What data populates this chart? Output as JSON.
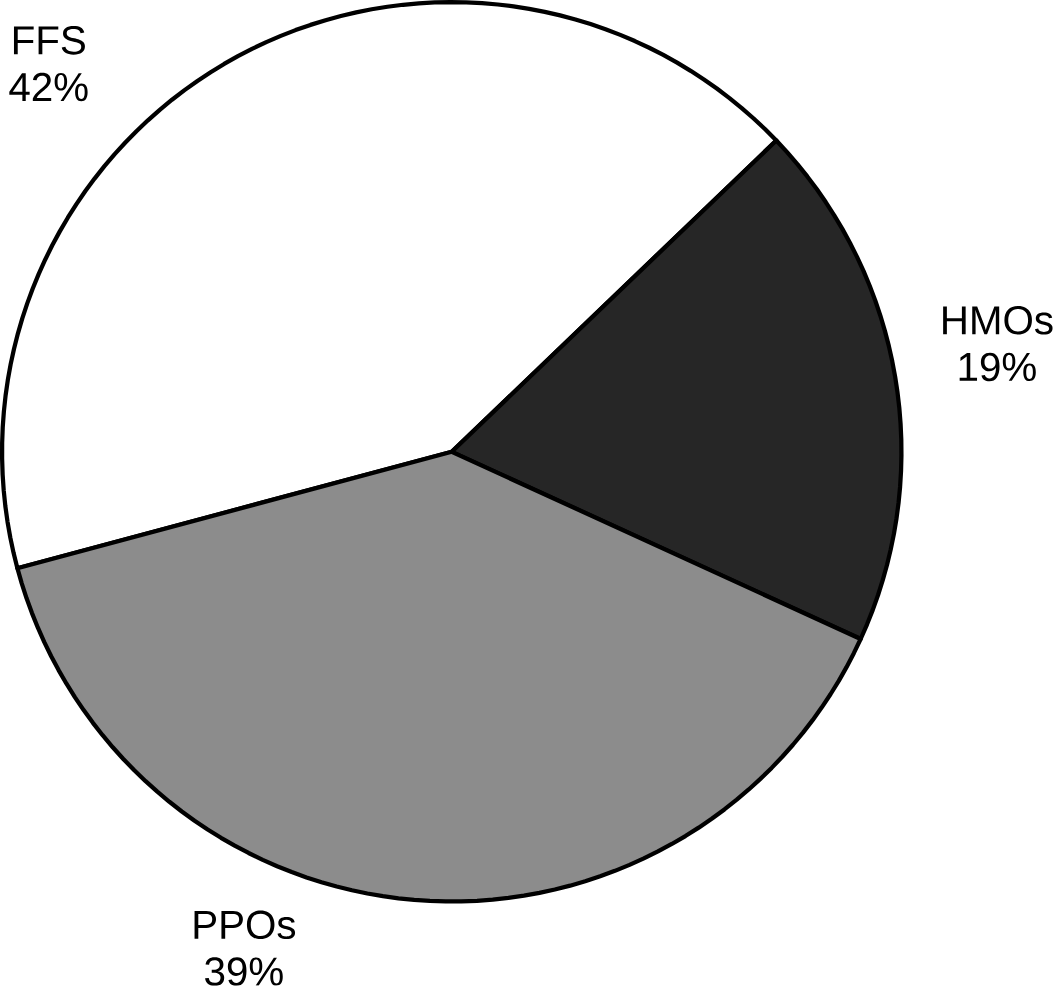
{
  "chart_data": {
    "type": "pie",
    "categories": [
      "FFS",
      "HMOs",
      "PPOs"
    ],
    "values": [
      42,
      19,
      39
    ],
    "value_labels": [
      "42%",
      "19%",
      "39%"
    ],
    "colors": [
      "#ffffff",
      "#262626",
      "#8c8c8c"
    ]
  }
}
